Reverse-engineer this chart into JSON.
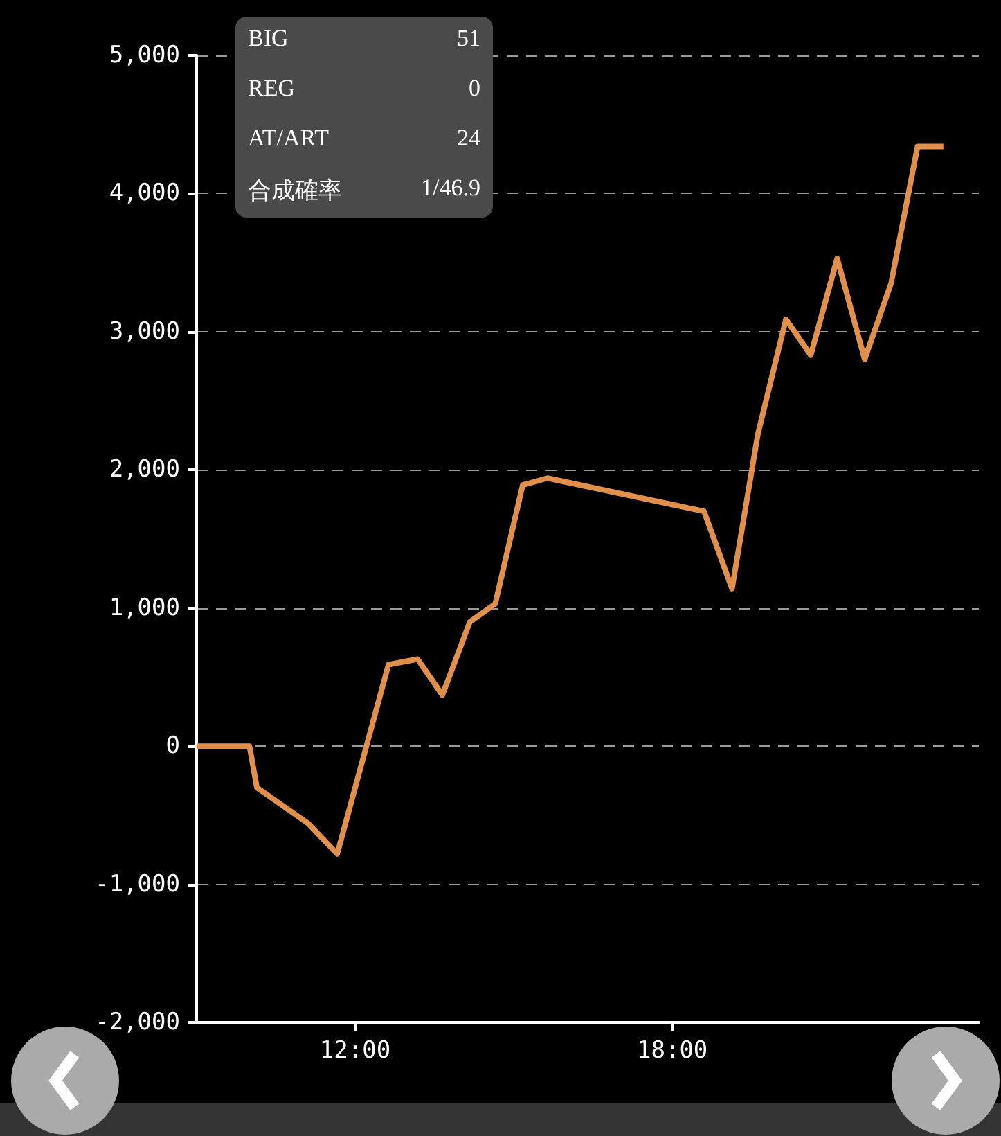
{
  "chart_data": {
    "type": "line",
    "x": [
      9.0,
      10.0,
      10.14,
      11.11,
      11.66,
      12.63,
      13.18,
      13.65,
      14.17,
      14.65,
      15.17,
      15.64,
      18.6,
      19.13,
      19.62,
      20.15,
      20.62,
      21.12,
      21.64,
      22.14,
      22.64,
      23.13
    ],
    "series": [
      {
        "color": "#e0904a",
        "values": [
          0,
          0,
          -300,
          -560,
          -780,
          590,
          630,
          370,
          900,
          1030,
          1890,
          1940,
          1700,
          1140,
          2260,
          3090,
          2830,
          3530,
          2800,
          3350,
          4340,
          4340
        ]
      }
    ],
    "xlim": [
      9,
      23.8
    ],
    "xticks": [
      {
        "value": 12,
        "label": "12:00"
      },
      {
        "value": 18,
        "label": "18:00"
      }
    ],
    "ylim": [
      -2000,
      5000
    ],
    "yticks": [
      {
        "value": -2000,
        "label": "-2,000"
      },
      {
        "value": -1000,
        "label": "-1,000"
      },
      0,
      {
        "value": 1000,
        "label": "1,000"
      },
      {
        "value": 2000,
        "label": "2,000"
      },
      {
        "value": 3000,
        "label": "3,000"
      },
      {
        "value": 4000,
        "label": "4,000"
      },
      {
        "value": 5000,
        "label": "5,000"
      }
    ],
    "grid": "y",
    "marker": "none",
    "line_style": "solid",
    "annotations": [
      "BIG",
      "51",
      "REG",
      "0",
      "AT/ART",
      "24",
      "合成確率",
      "1/46.9"
    ]
  }
}
